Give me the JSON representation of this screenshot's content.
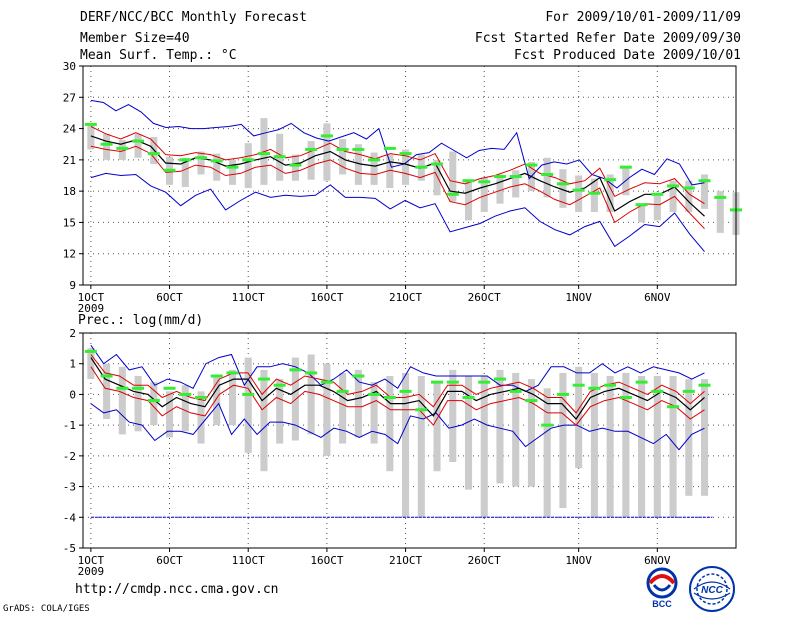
{
  "header": {
    "title": "DERF/NCC/BCC Monthly Forecast",
    "member_size": "Member Size=40",
    "variable": "Mean Surf. Temp.: °C",
    "period": "For 2009/10/01-2009/11/09",
    "refer_date": "Fcst Started Refer Date 2009/09/30",
    "produced_date": "Fcst Produced Date 2009/10/01"
  },
  "footer": {
    "url": "http://cmdp.ncc.cma.gov.cn",
    "grads": "GrADS: COLA/IGES",
    "logo1": "BCC",
    "logo2": "NCC"
  },
  "colors": {
    "box": "#cccccc",
    "obs": "#33ee33",
    "mean": "#000000",
    "inner": "#dd0000",
    "outer": "#0000cc",
    "grid": "#555555"
  },
  "x_ticks": [
    "1OCT",
    "6OCT",
    "11OCT",
    "16OCT",
    "21OCT",
    "26OCT",
    "1NOV",
    "6NOV"
  ],
  "x_tick_days": [
    0,
    5,
    10,
    15,
    20,
    25,
    31,
    36
  ],
  "x_year": "2009",
  "chart_data": [
    {
      "type": "line",
      "title": "Mean Surf. Temp.: °C",
      "ylim": [
        9,
        30
      ],
      "yticks": [
        9,
        12,
        15,
        18,
        21,
        24,
        27,
        30
      ],
      "x_days": 40,
      "series": [
        {
          "name": "max",
          "values": [
            26.7,
            26.5,
            25.7,
            26.3,
            25.6,
            24.5,
            24.1,
            24.2,
            24.0,
            24.0,
            24.1,
            24.2,
            24.4,
            23.3,
            23.6,
            23.9,
            24.5,
            23.6,
            23.1,
            22.8,
            23.2,
            23.6,
            23.0,
            24.0,
            20.3,
            20.6,
            21.5,
            21.7,
            22.6,
            21.9,
            21.2,
            21.9,
            22.1,
            22.0,
            23.6,
            19.2,
            20.5,
            20.8,
            20.6,
            21.0,
            19.6,
            19.2,
            18.3,
            19.3,
            20.1,
            19.6,
            21.1,
            20.6,
            18.6,
            18.8
          ]
        },
        {
          "name": "upper",
          "values": [
            24.2,
            23.5,
            23.0,
            23.6,
            23.0,
            21.5,
            21.4,
            21.7,
            21.5,
            21.0,
            21.2,
            21.5,
            22.0,
            21.2,
            21.4,
            22.0,
            22.6,
            21.8,
            21.5,
            21.1,
            21.6,
            21.4,
            21.0,
            21.6,
            19.0,
            18.7,
            19.2,
            19.5,
            20.0,
            20.6,
            19.7,
            19.3,
            18.7,
            19.0,
            20.2,
            17.5,
            18.2,
            18.8,
            18.7,
            19.2,
            17.7,
            16.8
          ]
        },
        {
          "name": "mean",
          "values": [
            23.3,
            22.8,
            22.5,
            22.9,
            22.3,
            20.7,
            20.6,
            21.2,
            21.0,
            20.4,
            20.6,
            21.0,
            21.3,
            20.5,
            20.7,
            21.4,
            21.8,
            21.0,
            20.6,
            20.4,
            20.8,
            20.6,
            20.2,
            20.7,
            18.0,
            17.8,
            18.3,
            18.7,
            19.2,
            19.7,
            19.0,
            18.4,
            17.9,
            18.3,
            19.3,
            16.1,
            17.0,
            17.7,
            17.7,
            18.4,
            16.9,
            15.6
          ]
        },
        {
          "name": "lower",
          "values": [
            22.3,
            22.0,
            21.8,
            22.3,
            21.6,
            19.8,
            19.9,
            20.5,
            20.3,
            19.5,
            19.7,
            20.3,
            20.5,
            19.7,
            20.0,
            20.6,
            21.0,
            20.2,
            19.7,
            19.6,
            20.0,
            19.7,
            19.3,
            19.8,
            17.0,
            16.7,
            17.4,
            17.9,
            18.4,
            18.7,
            18.0,
            17.2,
            16.7,
            17.5,
            18.3,
            15.0,
            16.0,
            16.8,
            16.7,
            17.5,
            15.9,
            14.4
          ]
        },
        {
          "name": "min",
          "values": [
            19.3,
            19.7,
            19.5,
            19.6,
            18.5,
            17.9,
            16.6,
            17.6,
            18.2,
            16.2,
            17.1,
            17.9,
            17.4,
            17.6,
            17.5,
            17.6,
            18.6,
            17.4,
            17.4,
            17.3,
            16.3,
            17.1,
            16.4,
            16.8,
            14.1,
            14.5,
            14.9,
            15.6,
            16.1,
            16.4,
            15.1,
            14.3,
            13.8,
            14.6,
            15.1,
            12.7,
            13.7,
            14.8,
            14.6,
            15.9,
            13.9,
            12.2
          ]
        },
        {
          "name": "obs",
          "values": [
            24.4,
            22.5,
            22.1,
            22.8,
            21.6,
            20.0,
            21.0,
            21.2,
            20.9,
            20.3,
            21.0,
            21.6,
            21.3,
            20.5,
            22.0,
            23.3,
            22.0,
            22.0,
            21.0,
            22.1,
            21.6,
            20.3,
            20.6,
            17.7,
            19.0,
            18.9,
            19.4,
            19.4,
            20.5,
            19.6,
            18.7,
            18.1,
            17.8,
            19.1,
            20.3,
            16.7,
            17.7,
            18.5,
            18.3,
            19.0,
            17.4,
            16.2
          ]
        },
        {
          "name": "box_top",
          "values": [
            24.5,
            23.5,
            22.9,
            23.5,
            23.2,
            21.3,
            21.2,
            21.8,
            21.6,
            21.0,
            22.6,
            25.0,
            23.5,
            21.5,
            22.8,
            24.5,
            23.0,
            22.5,
            21.7,
            21.5,
            22.0,
            21.5,
            21.0,
            21.8,
            19.0,
            19.3,
            19.6,
            20.0,
            20.8,
            21.2,
            20.1,
            19.5,
            19.2,
            19.6,
            20.3,
            16.8,
            17.8,
            19.0,
            19.0,
            19.6,
            18.0,
            17.9
          ]
        },
        {
          "name": "box_bottom",
          "values": [
            22.0,
            21.0,
            21.0,
            21.2,
            20.6,
            18.6,
            18.4,
            19.6,
            19.0,
            18.6,
            18.3,
            18.6,
            19.0,
            19.0,
            19.1,
            19.0,
            19.6,
            18.6,
            18.6,
            18.3,
            18.6,
            19.0,
            17.6,
            17.0,
            15.2,
            16.0,
            16.8,
            17.4,
            18.0,
            17.4,
            16.4,
            16.0,
            16.0,
            16.0,
            17.6,
            15.0,
            15.2,
            16.0,
            16.0,
            16.3,
            14.0,
            13.8
          ]
        }
      ]
    },
    {
      "type": "line",
      "title": "Prec.: log(mm/d)",
      "ylim": [
        -5,
        2
      ],
      "yticks": [
        -5,
        -4,
        -3,
        -2,
        -1,
        0,
        1,
        2
      ],
      "x_days": 40,
      "series": [
        {
          "name": "max",
          "values": [
            1.6,
            1.0,
            1.3,
            0.8,
            0.9,
            0.3,
            0.5,
            0.4,
            0.2,
            1.0,
            1.2,
            1.3,
            0.3,
            0.9,
            0.9,
            1.0,
            0.9,
            0.7,
            0.3,
            0.5,
            0.8,
            0.4,
            0.3,
            0.5,
            0.2,
            0.9,
            0.7,
            0.6,
            0.6,
            0.6,
            0.6,
            0.6,
            0.3,
            0.3,
            0.1,
            0.3,
            0.9,
            0.9,
            0.7,
            0.7,
            1.0,
            0.7,
            0.9,
            0.7,
            0.9,
            0.8,
            0.7,
            0.5,
            0.7
          ]
        },
        {
          "name": "upper",
          "values": [
            1.3,
            0.7,
            0.6,
            0.3,
            0.3,
            -0.1,
            0.1,
            -0.1,
            -0.2,
            0.5,
            0.7,
            0.7,
            0.0,
            0.5,
            0.3,
            0.6,
            0.5,
            0.4,
            0.0,
            0.1,
            0.3,
            -0.1,
            -0.1,
            0.0,
            -0.4,
            0.3,
            0.3,
            0.0,
            0.2,
            0.3,
            0.4,
            0.2,
            -0.1,
            -0.1,
            -0.6,
            0.1,
            0.3,
            0.4,
            0.2,
            0.0,
            0.3,
            0.1,
            -0.3,
            0.1
          ]
        },
        {
          "name": "mean",
          "values": [
            1.2,
            0.5,
            0.3,
            0.1,
            0.0,
            -0.4,
            -0.1,
            -0.3,
            -0.4,
            0.3,
            0.5,
            0.5,
            -0.2,
            0.2,
            0.0,
            0.3,
            0.3,
            0.1,
            -0.2,
            -0.1,
            0.1,
            -0.3,
            -0.3,
            -0.2,
            -0.7,
            0.1,
            0.1,
            -0.2,
            0.0,
            0.1,
            0.2,
            0.0,
            -0.3,
            -0.3,
            -0.8,
            -0.1,
            0.1,
            0.2,
            0.0,
            -0.2,
            0.1,
            -0.1,
            -0.5,
            -0.1
          ]
        },
        {
          "name": "lower",
          "values": [
            0.9,
            0.2,
            0.1,
            -0.1,
            -0.2,
            -0.7,
            -0.4,
            -0.6,
            -0.7,
            0.0,
            0.3,
            0.2,
            -0.5,
            -0.1,
            -0.3,
            0.1,
            0.0,
            -0.2,
            -0.4,
            -0.4,
            -0.2,
            -0.5,
            -0.5,
            -0.5,
            -1.0,
            -0.2,
            -0.2,
            -0.5,
            -0.3,
            -0.2,
            -0.1,
            -0.3,
            -0.6,
            -0.6,
            -1.0,
            -0.4,
            -0.2,
            -0.1,
            -0.3,
            -0.5,
            -0.2,
            -0.4,
            -0.8,
            -0.5
          ]
        },
        {
          "name": "min",
          "values": [
            -0.3,
            -0.6,
            -0.5,
            -0.9,
            -1.0,
            -1.5,
            -1.2,
            -1.2,
            -1.3,
            -0.8,
            -0.3,
            -1.3,
            -0.8,
            -1.3,
            -0.9,
            -0.9,
            -1.0,
            -1.2,
            -1.4,
            -1.1,
            -1.2,
            -1.4,
            -1.2,
            -1.3,
            -1.6,
            -0.7,
            -0.8,
            -0.6,
            -1.1,
            -1.0,
            -0.8,
            -1.0,
            -1.1,
            -1.2,
            -1.7,
            -1.4,
            -1.1,
            -1.0,
            -1.0,
            -1.2,
            -1.1,
            -1.2,
            -1.2,
            -1.4,
            -1.6,
            -1.3,
            -1.8,
            -1.3,
            -1.1
          ]
        },
        {
          "name": "obs",
          "values": [
            1.4,
            0.6,
            0.2,
            0.2,
            -0.2,
            0.2,
            0.0,
            -0.1,
            0.6,
            0.7,
            0.0,
            0.5,
            0.3,
            0.8,
            0.7,
            0.4,
            0.1,
            0.6,
            0.0,
            -0.1,
            0.1,
            -0.5,
            0.4,
            0.4,
            -0.1,
            0.4,
            0.5,
            0.1,
            -0.2,
            -1.0,
            0.0,
            0.3,
            0.2,
            0.3,
            -0.1,
            0.4,
            0.1,
            -0.4,
            0.1,
            0.3
          ]
        },
        {
          "name": "box_top",
          "values": [
            1.5,
            1.0,
            0.9,
            0.6,
            0.4,
            0.1,
            0.3,
            0.1,
            0.6,
            0.8,
            1.2,
            0.8,
            0.5,
            1.2,
            1.3,
            1.0,
            0.7,
            0.8,
            0.4,
            0.6,
            0.7,
            0.6,
            0.4,
            0.8,
            0.6,
            0.6,
            0.8,
            0.7,
            0.5,
            0.2,
            0.7,
            0.9,
            0.7,
            0.6,
            0.7,
            0.6,
            0.6,
            0.6,
            0.5,
            0.5
          ]
        },
        {
          "name": "box_bottom",
          "values": [
            0.5,
            -0.8,
            -1.3,
            -1.2,
            -1.0,
            -1.4,
            -1.2,
            -1.6,
            -1.0,
            -1.0,
            -1.9,
            -2.5,
            -1.6,
            -1.5,
            -1.3,
            -2.0,
            -1.6,
            -1.4,
            -1.6,
            -2.5,
            -4.0,
            -4.0,
            -2.5,
            -2.2,
            -3.1,
            -4.0,
            -2.9,
            -3.0,
            -3.0,
            -4.0,
            -3.7,
            -2.4,
            -4.0,
            -4.0,
            -4.0,
            -4.0,
            -4.0,
            -4.0,
            -3.3,
            -3.3
          ]
        },
        {
          "name": "floor",
          "values": [
            -4.0
          ]
        }
      ]
    }
  ]
}
